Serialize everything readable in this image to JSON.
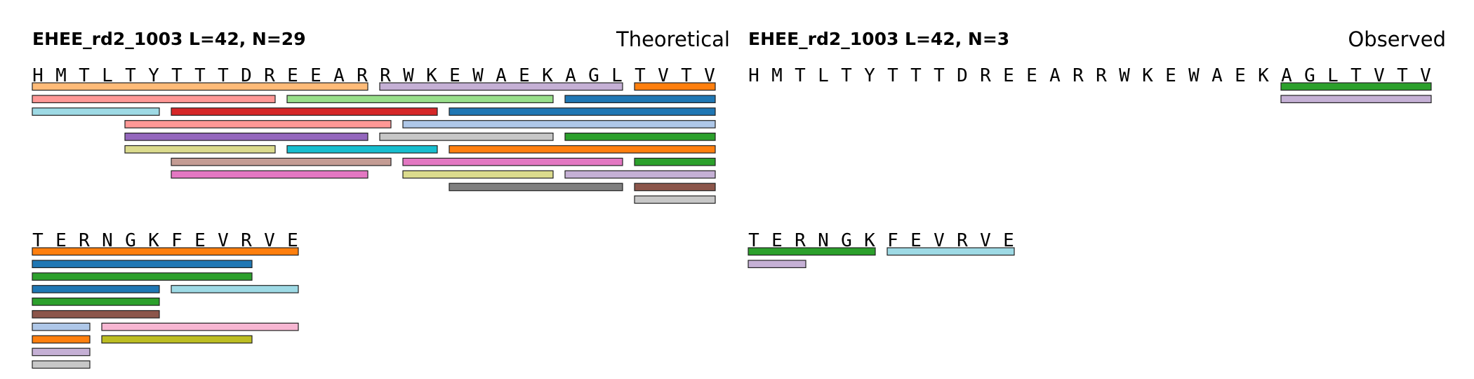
{
  "panels": [
    {
      "title": "EHEE_rd2_1003  L=42, N=29",
      "mode": "Theoretical",
      "rows": [
        {
          "sequence": "HMTLTYTTTDREEARRWKEWAEKAGLTVTV",
          "bars": [
            {
              "start": 0,
              "end": 14,
              "lane": 0,
              "color": "#ffbb78"
            },
            {
              "start": 15,
              "end": 25,
              "lane": 0,
              "color": "#c5b0d5"
            },
            {
              "start": 26,
              "end": 29,
              "lane": 0,
              "color": "#ff7f0e"
            },
            {
              "start": 0,
              "end": 10,
              "lane": 1,
              "color": "#ff9896"
            },
            {
              "start": 11,
              "end": 22,
              "lane": 1,
              "color": "#98df8a"
            },
            {
              "start": 23,
              "end": 29,
              "lane": 1,
              "color": "#1f77b4"
            },
            {
              "start": 0,
              "end": 5,
              "lane": 2,
              "color": "#9edae5"
            },
            {
              "start": 6,
              "end": 17,
              "lane": 2,
              "color": "#d62728"
            },
            {
              "start": 18,
              "end": 29,
              "lane": 2,
              "color": "#1f77b4"
            },
            {
              "start": 4,
              "end": 15,
              "lane": 3,
              "color": "#ff9896"
            },
            {
              "start": 16,
              "end": 29,
              "lane": 3,
              "color": "#aec7e8"
            },
            {
              "start": 4,
              "end": 14,
              "lane": 4,
              "color": "#9467bd"
            },
            {
              "start": 15,
              "end": 22,
              "lane": 4,
              "color": "#c7c7c7"
            },
            {
              "start": 23,
              "end": 29,
              "lane": 4,
              "color": "#2ca02c"
            },
            {
              "start": 4,
              "end": 10,
              "lane": 5,
              "color": "#dbdb8d"
            },
            {
              "start": 11,
              "end": 17,
              "lane": 5,
              "color": "#17becf"
            },
            {
              "start": 18,
              "end": 29,
              "lane": 5,
              "color": "#ff7f0e"
            },
            {
              "start": 6,
              "end": 15,
              "lane": 6,
              "color": "#c49c94"
            },
            {
              "start": 16,
              "end": 25,
              "lane": 6,
              "color": "#e377c2"
            },
            {
              "start": 26,
              "end": 29,
              "lane": 6,
              "color": "#2ca02c"
            },
            {
              "start": 6,
              "end": 14,
              "lane": 7,
              "color": "#e377c2"
            },
            {
              "start": 16,
              "end": 22,
              "lane": 7,
              "color": "#dbdb8d"
            },
            {
              "start": 23,
              "end": 29,
              "lane": 7,
              "color": "#c5b0d5"
            },
            {
              "start": 18,
              "end": 25,
              "lane": 8,
              "color": "#7f7f7f"
            },
            {
              "start": 26,
              "end": 29,
              "lane": 8,
              "color": "#8c564b"
            },
            {
              "start": 26,
              "end": 29,
              "lane": 9,
              "color": "#c7c7c7"
            }
          ]
        },
        {
          "sequence": "TERNGKFEVRVE",
          "bars": [
            {
              "start": 0,
              "end": 11,
              "lane": 0,
              "color": "#ff7f0e"
            },
            {
              "start": 0,
              "end": 9,
              "lane": 1,
              "color": "#1f77b4"
            },
            {
              "start": 0,
              "end": 9,
              "lane": 2,
              "color": "#2ca02c"
            },
            {
              "start": 0,
              "end": 5,
              "lane": 3,
              "color": "#1f77b4"
            },
            {
              "start": 6,
              "end": 11,
              "lane": 3,
              "color": "#9edae5"
            },
            {
              "start": 0,
              "end": 5,
              "lane": 4,
              "color": "#2ca02c"
            },
            {
              "start": 0,
              "end": 5,
              "lane": 5,
              "color": "#8c564b"
            },
            {
              "start": 0,
              "end": 2,
              "lane": 6,
              "color": "#aec7e8"
            },
            {
              "start": 3,
              "end": 11,
              "lane": 6,
              "color": "#f7b6d2"
            },
            {
              "start": 0,
              "end": 2,
              "lane": 7,
              "color": "#ff7f0e"
            },
            {
              "start": 3,
              "end": 9,
              "lane": 7,
              "color": "#bcbd22"
            },
            {
              "start": 0,
              "end": 2,
              "lane": 8,
              "color": "#c5b0d5"
            },
            {
              "start": 0,
              "end": 2,
              "lane": 9,
              "color": "#c7c7c7"
            }
          ]
        }
      ]
    },
    {
      "title": "EHEE_rd2_1003  L=42, N=3",
      "mode": "Observed",
      "rows": [
        {
          "sequence": "HMTLTYTTTDREEARRWKEWAEKAGLTVTV",
          "bars": [
            {
              "start": 23,
              "end": 29,
              "lane": 0,
              "color": "#2ca02c"
            },
            {
              "start": 23,
              "end": 29,
              "lane": 1,
              "color": "#c5b0d5"
            }
          ]
        },
        {
          "sequence": "TERNGKFEVRVE",
          "bars": [
            {
              "start": 0,
              "end": 5,
              "lane": 0,
              "color": "#2ca02c"
            },
            {
              "start": 6,
              "end": 11,
              "lane": 0,
              "color": "#9edae5"
            },
            {
              "start": 0,
              "end": 2,
              "lane": 1,
              "color": "#c5b0d5"
            }
          ]
        }
      ]
    }
  ]
}
